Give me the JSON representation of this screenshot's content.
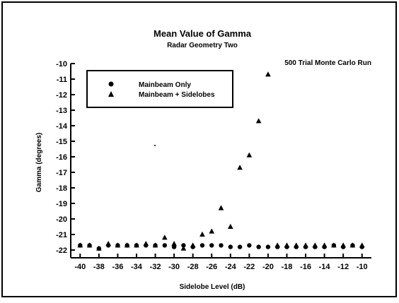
{
  "chart_data": {
    "type": "scatter",
    "title": "Mean Value of Gamma",
    "subtitle": "Radar Geometry Two",
    "annotation": "500 Trial Monte Carlo Run",
    "xlabel": "Sidelobe Level (dB)",
    "ylabel": "Gamma (degrees)",
    "xlim": [
      -41,
      -9
    ],
    "ylim": [
      -22.5,
      -10
    ],
    "x_ticks": [
      -40,
      -38,
      -36,
      -34,
      -32,
      -30,
      -28,
      -26,
      -24,
      -22,
      -20,
      -18,
      -16,
      -14,
      -12,
      -10
    ],
    "x_tick_labels": [
      "-40",
      "-38",
      "-36",
      "-34",
      "-32",
      "-30",
      "-28",
      "-26",
      "-24",
      "-22",
      "-20",
      "-18",
      "-16",
      "-14",
      "-12",
      "-10"
    ],
    "y_ticks": [
      -10,
      -11,
      -12,
      -13,
      -14,
      -15,
      -16,
      -17,
      -18,
      -19,
      -20,
      -21,
      -22
    ],
    "y_tick_labels": [
      "-10",
      "-11",
      "-12",
      "-13",
      "-14",
      "-15",
      "-16",
      "-17",
      "-18",
      "-19",
      "-20",
      "-21",
      "-22"
    ],
    "grid": false,
    "legend_position": "top-left",
    "series": [
      {
        "name": "Mainbeam Only",
        "marker": "circle",
        "color": "#000000",
        "x": [
          -40,
          -39,
          -38,
          -37,
          -36,
          -35,
          -34,
          -33,
          -32,
          -31,
          -30,
          -29,
          -28,
          -27,
          -26,
          -25,
          -24,
          -23,
          -22,
          -21,
          -20,
          -19,
          -18,
          -17,
          -16,
          -15,
          -14,
          -13,
          -12,
          -11,
          -10
        ],
        "y": [
          -21.7,
          -21.7,
          -21.9,
          -21.7,
          -21.7,
          -21.7,
          -21.7,
          -21.7,
          -21.7,
          -21.7,
          -21.8,
          -21.7,
          -21.8,
          -21.7,
          -21.7,
          -21.7,
          -21.8,
          -21.8,
          -21.7,
          -21.8,
          -21.8,
          -21.8,
          -21.8,
          -21.8,
          -21.8,
          -21.8,
          -21.8,
          -21.7,
          -21.8,
          -21.7,
          -21.8
        ]
      },
      {
        "name": "Mainbeam + Sidelobes",
        "marker": "triangle",
        "color": "#000000",
        "x": [
          -40,
          -39,
          -38,
          -37,
          -36,
          -35,
          -34,
          -33,
          -32,
          -31,
          -30,
          -29,
          -28,
          -27,
          -26,
          -25,
          -24,
          -23,
          -22,
          -21,
          -20,
          -19,
          -18,
          -17,
          -16,
          -15,
          -14,
          -13,
          -12,
          -11,
          -10
        ],
        "y": [
          -21.7,
          -21.7,
          -21.9,
          -21.6,
          -21.7,
          -21.7,
          -21.7,
          -21.6,
          -21.7,
          -21.2,
          -21.6,
          -21.9,
          -21.7,
          -21.0,
          -20.8,
          -19.3,
          -20.5,
          -16.7,
          -15.9,
          -13.7,
          -10.7,
          -21.7,
          -21.7,
          -21.7,
          -21.7,
          -21.7,
          -21.7,
          -21.7,
          -21.7,
          -21.7,
          -21.7
        ]
      }
    ]
  }
}
